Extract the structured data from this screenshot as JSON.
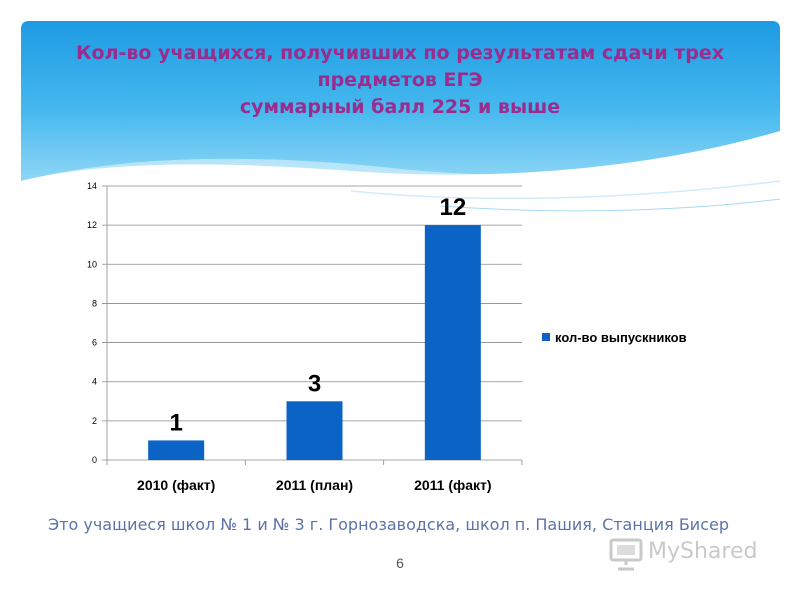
{
  "title_lines": [
    "Кол-во учащихся, получивших по результатам сдачи трех",
    "предметов ЕГЭ",
    "суммарный балл 225 и выше"
  ],
  "chart_data": {
    "type": "bar",
    "categories": [
      "2010 (факт)",
      "2011 (план)",
      "2011 (факт)"
    ],
    "series": [
      {
        "name": "кол-во выпускников",
        "values": [
          1,
          3,
          12
        ]
      }
    ],
    "data_labels": [
      "1",
      "3",
      "12"
    ],
    "ylim": [
      0,
      14
    ],
    "yticks": [
      0,
      2,
      4,
      6,
      8,
      10,
      12,
      14
    ],
    "grid": true,
    "legend_position": "right",
    "bar_color": "#0b64c5"
  },
  "caption": "Это учащиеся школ № 1 и № 3 г. Горнозаводска, школ п. Пашия, Станция Бисер",
  "page_number": "6",
  "watermark": {
    "text": "MyShared"
  },
  "colors": {
    "title": "#9b2b8d",
    "caption": "#5b73a8",
    "header_blue": "#1a9ee6"
  }
}
